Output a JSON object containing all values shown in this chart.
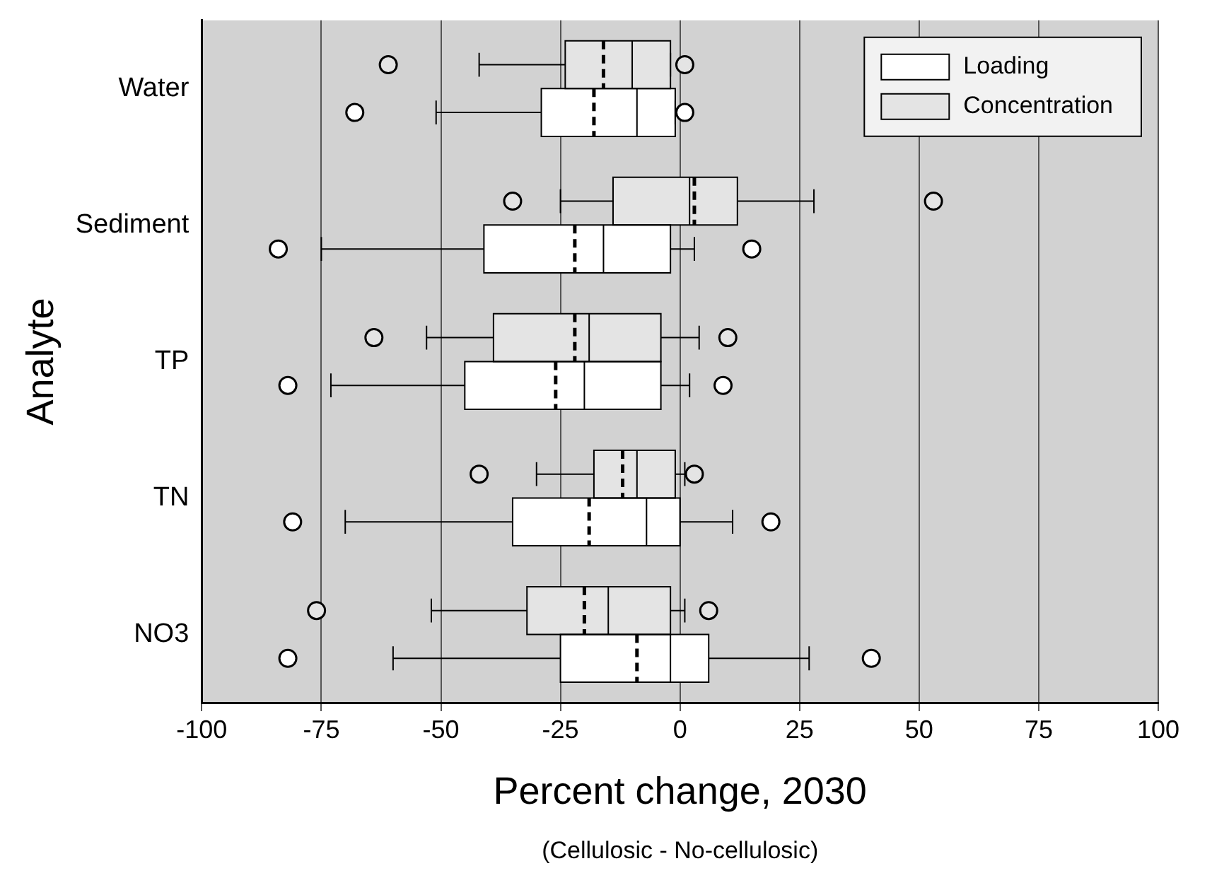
{
  "chart_data": {
    "type": "box",
    "orientation": "horizontal",
    "xlabel": "Percent change, 2030",
    "ylabel": "Analyte",
    "annotations": [
      "(Cellulosic - No-cellulosic)"
    ],
    "categories": [
      "Water",
      "Sediment",
      "TP",
      "TN",
      "NO3"
    ],
    "xlim": [
      -100,
      100
    ],
    "xticks": [
      -100,
      -75,
      -50,
      -25,
      0,
      25,
      50,
      75,
      100
    ],
    "grid": "x",
    "legend": "top right",
    "series": [
      {
        "name": "Loading",
        "color": "#ffffff",
        "boxes": [
          {
            "low": -51,
            "q1": -29,
            "median": -9,
            "q3": -1,
            "high": -1,
            "mean": -18,
            "outliers": [
              -68,
              1
            ]
          },
          {
            "low": -75,
            "q1": -41,
            "median": -16,
            "q3": -2,
            "high": 3,
            "mean": -22,
            "outliers": [
              -84,
              15
            ]
          },
          {
            "low": -73,
            "q1": -45,
            "median": -20,
            "q3": -4,
            "high": 2,
            "mean": -26,
            "outliers": [
              -82,
              9
            ]
          },
          {
            "low": -70,
            "q1": -35,
            "median": -7,
            "q3": 0,
            "high": 11,
            "mean": -19,
            "outliers": [
              -81,
              19
            ]
          },
          {
            "low": -60,
            "q1": -25,
            "median": -2,
            "q3": 6,
            "high": 27,
            "mean": -9,
            "outliers": [
              -82,
              40
            ]
          }
        ]
      },
      {
        "name": "Concentration",
        "color": "#e4e4e4",
        "boxes": [
          {
            "low": -42,
            "q1": -24,
            "median": -10,
            "q3": -2,
            "high": -2,
            "mean": -16,
            "outliers": [
              -61,
              1
            ]
          },
          {
            "low": -25,
            "q1": -14,
            "median": 2,
            "q3": 12,
            "high": 28,
            "mean": 3,
            "outliers": [
              -35,
              53
            ]
          },
          {
            "low": -53,
            "q1": -39,
            "median": -19,
            "q3": -4,
            "high": 4,
            "mean": -22,
            "outliers": [
              -64,
              10
            ]
          },
          {
            "low": -30,
            "q1": -18,
            "median": -9,
            "q3": -1,
            "high": 1,
            "mean": -12,
            "outliers": [
              -42,
              3
            ]
          },
          {
            "low": -52,
            "q1": -32,
            "median": -15,
            "q3": -2,
            "high": 1,
            "mean": -20,
            "outliers": [
              -76,
              6
            ]
          }
        ]
      }
    ]
  }
}
